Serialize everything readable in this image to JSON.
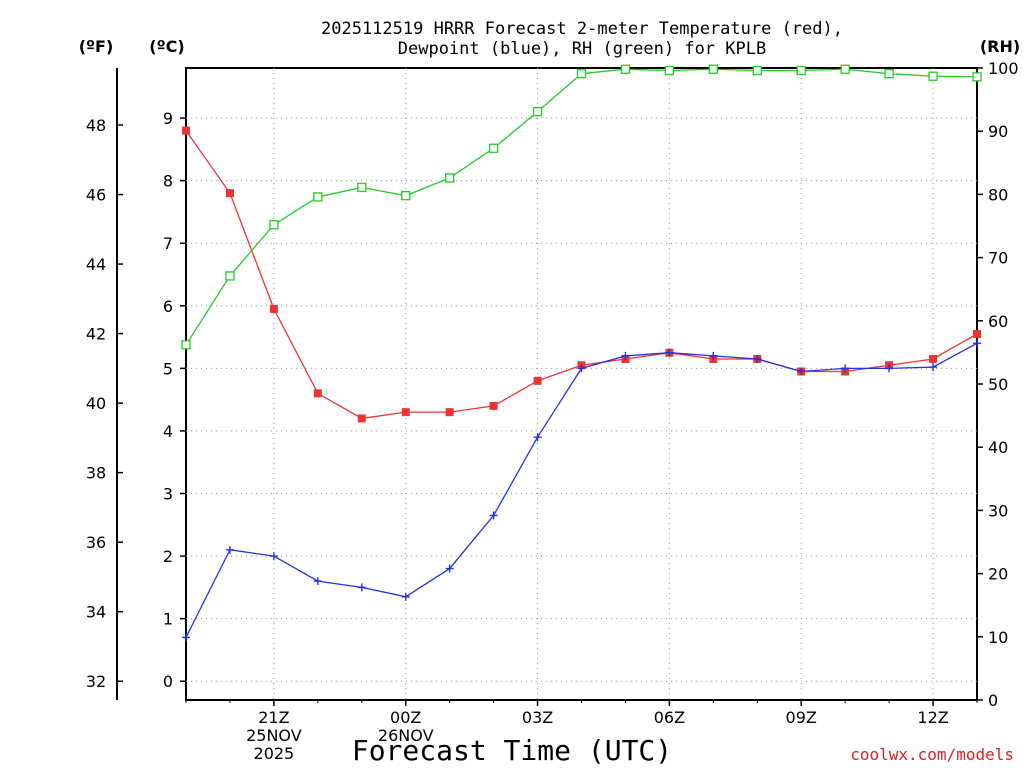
{
  "chart_data": {
    "type": "line",
    "title_line1": "2025112519 HRRR Forecast 2-meter Temperature (red),",
    "title_line2": "Dewpoint (blue), RH (green) for KPLB",
    "xlabel": "Forecast Time (UTC)",
    "credit": "coolwx.com/models",
    "left_outer_label": "(ºF)",
    "left_inner_label": "(ºC)",
    "right_label": "(RH)",
    "x_hours": [
      19,
      20,
      21,
      22,
      23,
      24,
      25,
      26,
      27,
      28,
      29,
      30,
      31,
      32,
      33,
      34,
      35,
      36,
      37
    ],
    "xlim": [
      19,
      37
    ],
    "ylim_c": [
      -0.3,
      9.8
    ],
    "ylim_rh": [
      0,
      100
    ],
    "ylim_f": [
      31.46,
      49.64
    ],
    "x_ticks": [
      {
        "hour": 21,
        "lines": [
          "21Z",
          "25NOV",
          "2025"
        ]
      },
      {
        "hour": 24,
        "lines": [
          "00Z",
          "26NOV"
        ]
      },
      {
        "hour": 27,
        "lines": [
          "03Z"
        ]
      },
      {
        "hour": 30,
        "lines": [
          "06Z"
        ]
      },
      {
        "hour": 33,
        "lines": [
          "09Z"
        ]
      },
      {
        "hour": 36,
        "lines": [
          "12Z"
        ]
      }
    ],
    "c_ticks": [
      "0",
      "1",
      "2",
      "3",
      "4",
      "5",
      "6",
      "7",
      "8",
      "9"
    ],
    "f_ticks": [
      "32",
      "34",
      "36",
      "38",
      "40",
      "42",
      "44",
      "46",
      "48"
    ],
    "rh_ticks": [
      "0",
      "10",
      "20",
      "30",
      "40",
      "50",
      "60",
      "70",
      "80",
      "90",
      "100"
    ],
    "grid": true,
    "series": [
      {
        "name": "Temperature",
        "color": "#ee3333",
        "marker": "filled-square",
        "values": [
          8.8,
          7.8,
          5.95,
          4.6,
          4.2,
          4.3,
          4.3,
          4.4,
          4.8,
          5.05,
          5.15,
          5.25,
          5.15,
          5.15,
          4.95,
          4.95,
          5.05,
          5.15,
          5.55
        ]
      },
      {
        "name": "Dewpoint",
        "color": "#2233dd",
        "marker": "plus",
        "values": [
          0.7,
          2.1,
          2.0,
          1.6,
          1.5,
          1.35,
          1.8,
          2.65,
          3.9,
          5.0,
          5.2,
          5.25,
          5.2,
          5.15,
          4.95,
          5.0,
          5.0,
          5.02,
          5.4
        ]
      },
      {
        "name": "RH",
        "color": "#22cc22",
        "marker": "open-square",
        "values": [
          56.2,
          67.1,
          75.2,
          79.6,
          81.1,
          79.8,
          82.6,
          87.3,
          93.1,
          99.1,
          99.8,
          99.6,
          99.8,
          99.6,
          99.6,
          99.8,
          99.1,
          98.7,
          98.6
        ]
      }
    ]
  }
}
